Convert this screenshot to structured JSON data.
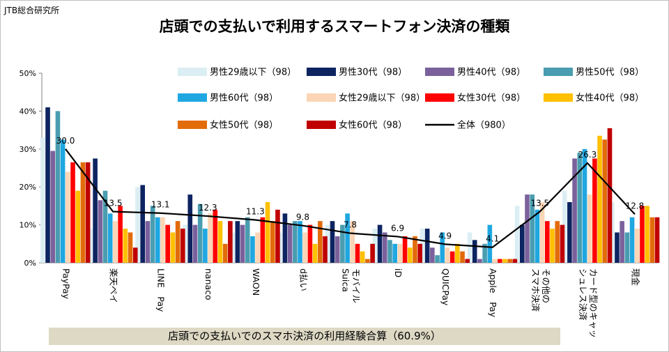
{
  "source": "JTB総合研究所",
  "title": "店頭での支払いで利用するスマートフォン決済の種類",
  "footer": "店頭での支払いでのスマホ決済の利用経験合算（60.9%）",
  "chart_data": {
    "type": "bar",
    "title": "店頭での支払いで利用するスマートフォン決済の種類",
    "ylim": [
      0,
      50
    ],
    "y_ticks": [
      "0%",
      "10%",
      "20%",
      "30%",
      "40%",
      "50%"
    ],
    "grid": false,
    "legend_position": "top",
    "categories": [
      "PayPay",
      "楽天ペイ",
      "LINE　Pay",
      "nanaco",
      "WAON",
      "d払い",
      "モバイル\nSuica",
      "iD",
      "QUICPay",
      "Apple　Pay",
      "その他の\nスマホ決済",
      "カード型のキャッ\nシュレス決済",
      "現金"
    ],
    "series": [
      {
        "name": "男性29歳以下（98）",
        "color": "#dbeef4",
        "values": [
          33,
          9,
          20,
          10,
          8,
          8,
          10,
          9,
          9,
          8,
          15,
          19,
          16
        ]
      },
      {
        "name": "男性30代（98）",
        "color": "#0d2461",
        "values": [
          41,
          27.5,
          20.5,
          18,
          11,
          13,
          11,
          10,
          9,
          6,
          10,
          16,
          8
        ]
      },
      {
        "name": "男性40代（98）",
        "color": "#7b619c",
        "values": [
          29.5,
          16.5,
          11,
          10,
          10,
          10,
          7,
          8,
          4,
          1,
          18,
          27.5,
          11
        ]
      },
      {
        "name": "男性50代（98）",
        "color": "#4a9db0",
        "values": [
          40,
          19,
          15,
          15.5,
          12,
          11,
          10,
          6,
          2,
          5,
          18,
          29,
          8
        ]
      },
      {
        "name": "男性60代（98）",
        "color": "#1fa7e1",
        "values": [
          32.5,
          13,
          12,
          9,
          7,
          11,
          13,
          5,
          8,
          10,
          14,
          30,
          12
        ]
      },
      {
        "name": "女性29歳以下（98）",
        "color": "#fbd5b5",
        "values": [
          24,
          11,
          12,
          13,
          8,
          8,
          11,
          5,
          4,
          1,
          16,
          18,
          9
        ]
      },
      {
        "name": "女性30代（98）",
        "color": "#ff0000",
        "values": [
          26.5,
          15,
          10,
          14,
          12,
          10,
          5,
          7,
          3,
          1,
          11,
          27.5,
          15
        ]
      },
      {
        "name": "女性40代（98）",
        "color": "#ffc000",
        "values": [
          19,
          9,
          8,
          11,
          16,
          5,
          3,
          4,
          5,
          1,
          9,
          33.5,
          15
        ]
      },
      {
        "name": "女性50代（98）",
        "color": "#e26b0a",
        "values": [
          26.5,
          8,
          11,
          5,
          11,
          11,
          1,
          7,
          3,
          1,
          11,
          32.5,
          12
        ]
      },
      {
        "name": "女性60代（98）",
        "color": "#c00000",
        "values": [
          26.5,
          4,
          9,
          11,
          14,
          7,
          5,
          5,
          1,
          1,
          10,
          35.5,
          12
        ]
      }
    ],
    "total_series": {
      "name": "全体（980）",
      "color": "#000000",
      "values": [
        30.0,
        13.5,
        13.1,
        12.3,
        11.3,
        9.8,
        7.8,
        6.9,
        4.9,
        4.1,
        13.5,
        26.3,
        12.8
      ]
    }
  }
}
